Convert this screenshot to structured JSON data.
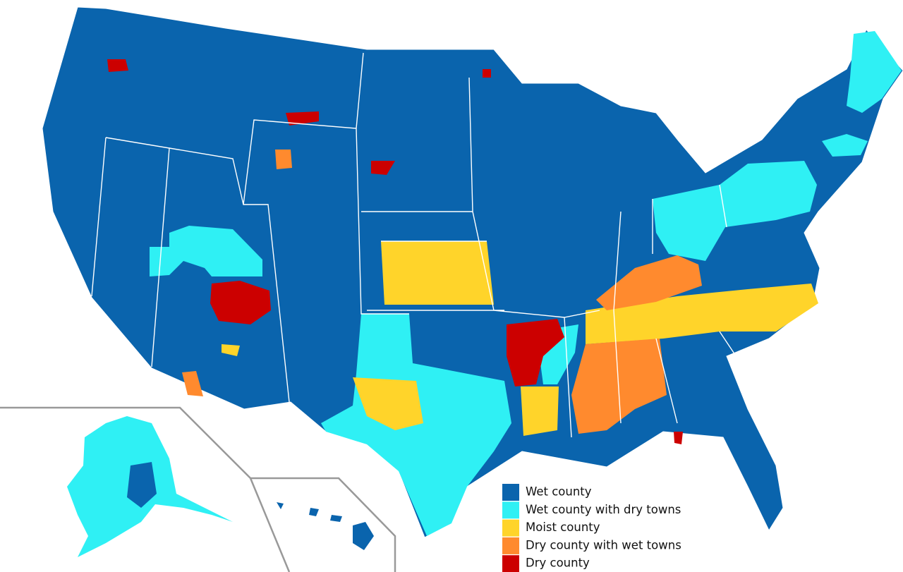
{
  "legend": {
    "items": [
      {
        "label": "Wet county",
        "color": "#0a64ad"
      },
      {
        "label": "Wet county with dry towns",
        "color": "#2ff0f4"
      },
      {
        "label": "Moist county",
        "color": "#ffd42a"
      },
      {
        "label": "Dry county with wet towns",
        "color": "#ff8a2e"
      },
      {
        "label": "Dry county",
        "color": "#cc0000"
      }
    ]
  }
}
